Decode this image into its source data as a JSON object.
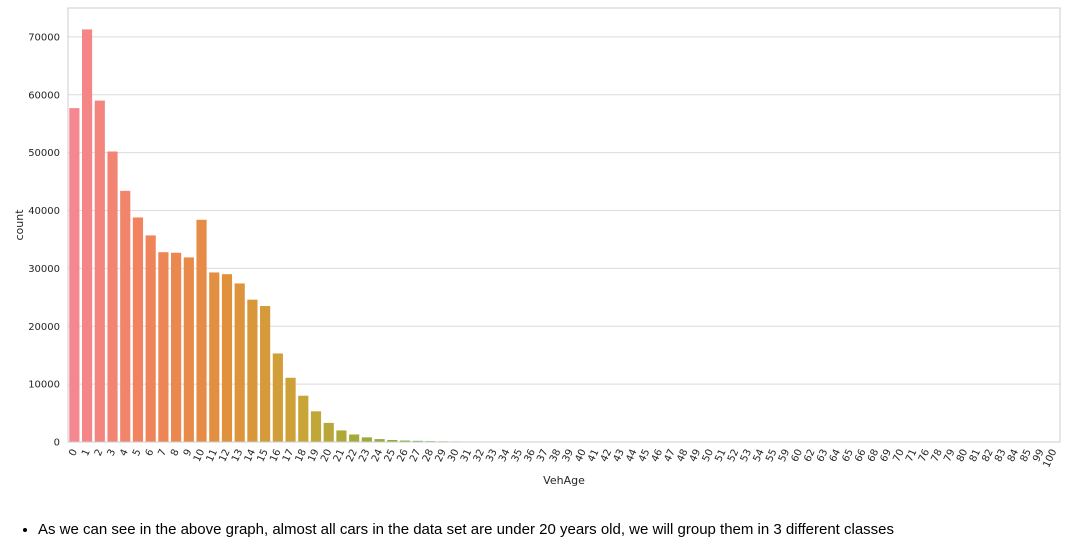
{
  "chart_data": {
    "type": "bar",
    "xlabel": "VehAge",
    "ylabel": "count",
    "ylim": [
      0,
      75000
    ],
    "yticks": [
      0,
      10000,
      20000,
      30000,
      40000,
      50000,
      60000,
      70000
    ],
    "grid": true,
    "categories": [
      "0",
      "1",
      "2",
      "3",
      "4",
      "5",
      "6",
      "7",
      "8",
      "9",
      "10",
      "11",
      "12",
      "13",
      "14",
      "15",
      "16",
      "17",
      "18",
      "19",
      "20",
      "21",
      "22",
      "23",
      "24",
      "25",
      "26",
      "27",
      "28",
      "29",
      "30",
      "31",
      "32",
      "33",
      "34",
      "35",
      "36",
      "37",
      "38",
      "39",
      "40",
      "41",
      "42",
      "43",
      "44",
      "45",
      "46",
      "47",
      "48",
      "49",
      "50",
      "51",
      "52",
      "53",
      "54",
      "55",
      "59",
      "60",
      "62",
      "63",
      "64",
      "65",
      "66",
      "68",
      "69",
      "70",
      "71",
      "76",
      "78",
      "79",
      "80",
      "81",
      "82",
      "83",
      "84",
      "85",
      "99",
      "100"
    ],
    "values": [
      57700,
      71300,
      59000,
      50200,
      43400,
      38800,
      35700,
      32800,
      32700,
      31900,
      38400,
      29300,
      29000,
      27400,
      24600,
      23500,
      15300,
      11100,
      8000,
      5300,
      3300,
      2000,
      1300,
      800,
      500,
      350,
      250,
      200,
      150,
      120,
      100,
      60,
      40,
      30,
      20,
      15,
      12,
      10,
      8,
      6,
      5,
      4,
      4,
      3,
      3,
      2,
      2,
      2,
      2,
      2,
      2,
      1,
      1,
      1,
      1,
      1,
      1,
      1,
      1,
      1,
      1,
      1,
      1,
      1,
      1,
      1,
      1,
      1,
      1,
      1,
      1,
      1,
      1,
      1,
      1,
      1,
      1,
      1
    ]
  },
  "notes": [
    "As we can see in the above graph, almost all cars in the data set are under 20 years old, we will group them in 3 different classes"
  ]
}
